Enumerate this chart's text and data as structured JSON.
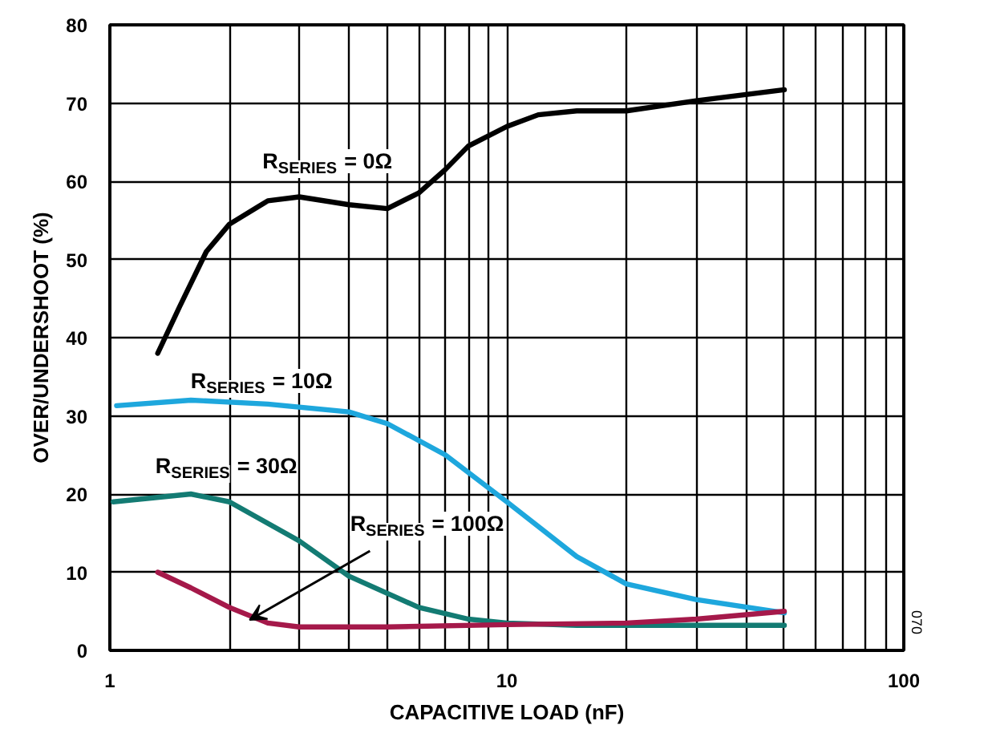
{
  "chart_data": {
    "type": "line",
    "xlabel": "CAPACITIVE LOAD (nF)",
    "ylabel": "OVER/UNDERSHOOT (%)",
    "log": "x",
    "grid": true,
    "line_style": "solid",
    "marker": "none",
    "xlim": [
      1,
      100
    ],
    "ylim": [
      0,
      80
    ],
    "xticks": [
      1,
      {
        "value": 2,
        "label": null
      },
      {
        "value": 3,
        "label": null
      },
      {
        "value": 4,
        "label": null
      },
      {
        "value": 5,
        "label": null
      },
      {
        "value": 6,
        "label": null
      },
      {
        "value": 7,
        "label": null
      },
      {
        "value": 8,
        "label": null
      },
      {
        "value": 9,
        "label": null
      },
      10,
      {
        "value": 20,
        "label": null
      },
      {
        "value": 30,
        "label": null
      },
      {
        "value": 40,
        "label": null
      },
      {
        "value": 50,
        "label": null
      },
      {
        "value": 60,
        "label": null
      },
      {
        "value": 70,
        "label": null
      },
      {
        "value": 80,
        "label": null
      },
      {
        "value": 90,
        "label": null
      },
      100
    ],
    "yticks": [
      0,
      10,
      20,
      30,
      40,
      50,
      60,
      70,
      80
    ],
    "series": [
      {
        "color": "#000000",
        "x": [
          1.32,
          1.5,
          1.75,
          2.0,
          2.5,
          3.0,
          4.0,
          5.0,
          6.0,
          7.0,
          8.0,
          10,
          12,
          15,
          20,
          30,
          50
        ],
        "values": [
          38,
          44,
          51,
          54.5,
          57.5,
          58,
          57,
          56.5,
          58.5,
          61.5,
          64.5,
          67,
          68.5,
          69,
          69,
          70.3,
          71.7
        ]
      },
      {
        "color": "#1ea7dd",
        "x": [
          1.04,
          1.6,
          2.5,
          4,
          5,
          7,
          10,
          15,
          20,
          30,
          50
        ],
        "values": [
          31.3,
          32,
          31.5,
          30.5,
          29,
          25,
          19,
          12,
          8.5,
          6.5,
          4.8
        ]
      },
      {
        "color": "#137b73",
        "x": [
          1.02,
          1.6,
          2.0,
          3,
          4,
          6,
          8,
          10,
          15,
          30,
          50
        ],
        "values": [
          19,
          20,
          19,
          14,
          9.5,
          5.5,
          4,
          3.5,
          3.2,
          3.2,
          3.2
        ]
      },
      {
        "color": "#a5194a",
        "x": [
          1.32,
          1.6,
          2.0,
          2.5,
          3,
          5,
          10,
          20,
          30,
          50
        ],
        "values": [
          10,
          8,
          5.5,
          3.5,
          3,
          3,
          3.3,
          3.5,
          4,
          5
        ]
      }
    ],
    "annotations": [
      "R$_{SERIES}$ = 0Ω",
      "R$_{SERIES}$ = 10Ω",
      "R$_{SERIES}$ = 30Ω",
      {
        "text": "R$_{SERIES}$ = 100Ω",
        "x": 2.25,
        "y": 3.9
      },
      "070"
    ]
  }
}
